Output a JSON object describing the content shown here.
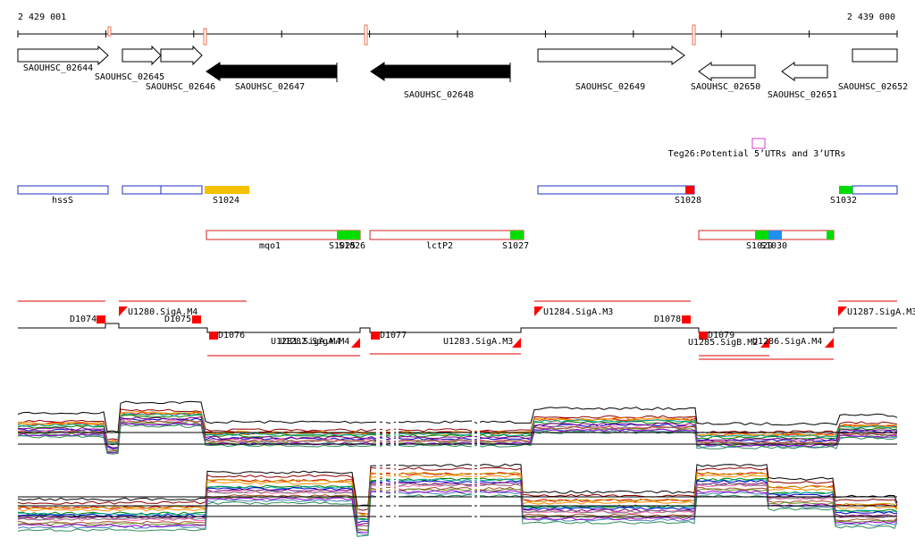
{
  "ruler": {
    "start": "2 429 001",
    "end": "2 439 000"
  },
  "genes": [
    "SAOUHSC_02644",
    "SAOUHSC_02645",
    "SAOUHSC_02646",
    "SAOUHSC_02647",
    "SAOUHSC_02648",
    "SAOUHSC_02649",
    "SAOUHSC_02650",
    "SAOUHSC_02651",
    "SAOUHSC_02652"
  ],
  "track_teg26": "Teg26:Potential 5’UTRs and 3’UTRs",
  "features_1": [
    "hssS",
    "S1024",
    "S1028",
    "S1032"
  ],
  "features_2": [
    "mqo1",
    "S1025",
    "S1026",
    "lctP2",
    "S1027",
    "S1029",
    "S1030"
  ],
  "promoters": [
    "D1074",
    "U1280.SigA.M4",
    "D1075",
    "D1076",
    "U1281.SigA.M4",
    "U1282.SigA.M4",
    "D1077",
    "U1283.SigA.M3",
    "U1284.SigA.M3",
    "D1078",
    "D1079",
    "U1285.SigB.M2",
    "U1286.SigA.M4",
    "U1287.SigA.M3"
  ]
}
